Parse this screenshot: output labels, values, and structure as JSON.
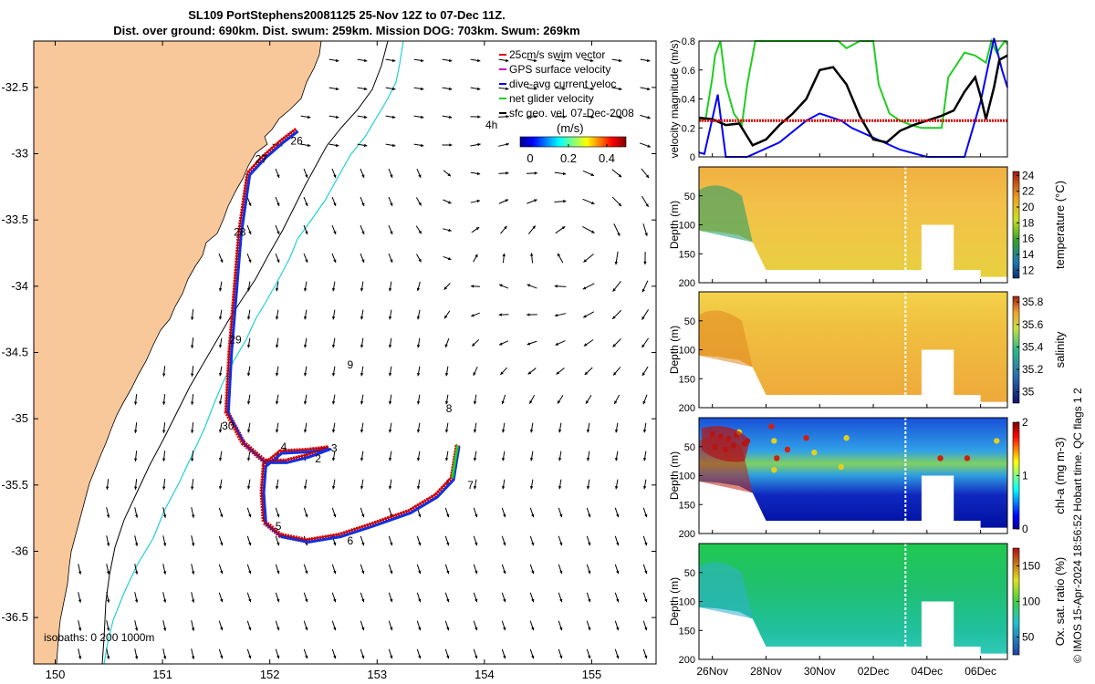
{
  "title_line1": "SL109 PortStephens20081125 25-Nov 12Z to 07-Dec 11Z.",
  "title_line2": "Dist. over ground: 690km. Dist. swum: 259km. Mission DOG: 703km. Swum: 269km",
  "credit": "© IMOS 15-Apr-2024 18:56:52 Hobart time. QC flags 1  2",
  "map": {
    "legend": [
      "25cm/s swim vector",
      "GPS surface velocity",
      "dive-avg current veloc",
      "net glider velocity",
      "sfc geo. vel. 07-Dec-2008"
    ],
    "legend_colors": [
      "#e00000",
      "#cc00cc",
      "#0000ff",
      "#22cc22",
      "#000000"
    ],
    "scale_label": "4h",
    "colorbar_unit": "(m/s)",
    "colorbar_ticks": [
      "0",
      "0.2",
      "0.4"
    ],
    "isobaths_label": "isobaths: 0    200  1000m",
    "lon_ticks": [
      "150",
      "151",
      "152",
      "153",
      "154",
      "155"
    ],
    "lat_ticks": [
      "-32.5",
      "-33",
      "-33.5",
      "-34",
      "-34.5",
      "-35",
      "-35.5",
      "-36",
      "-36.5"
    ],
    "day_labels": [
      {
        "t": "26",
        "lon": 152.25,
        "lat": -32.93
      },
      {
        "t": "27",
        "lon": 151.92,
        "lat": -33.07
      },
      {
        "t": "28",
        "lon": 151.72,
        "lat": -33.62
      },
      {
        "t": "29",
        "lon": 151.68,
        "lat": -34.43
      },
      {
        "t": "9",
        "lon": 152.75,
        "lat": -34.62
      },
      {
        "t": "30",
        "lon": 151.61,
        "lat": -35.08
      },
      {
        "t": "8",
        "lon": 153.67,
        "lat": -34.95
      },
      {
        "t": "4",
        "lon": 152.13,
        "lat": -35.24
      },
      {
        "t": "3",
        "lon": 152.6,
        "lat": -35.25
      },
      {
        "t": "2",
        "lon": 152.45,
        "lat": -35.33
      },
      {
        "t": "7",
        "lon": 153.87,
        "lat": -35.53
      },
      {
        "t": "5",
        "lon": 152.08,
        "lat": -35.84
      },
      {
        "t": "6",
        "lon": 152.75,
        "lat": -35.95
      }
    ]
  },
  "chart_data": [
    {
      "type": "line",
      "ylabel": "velocity magnitude (m/s)",
      "ylim": [
        0,
        0.8
      ],
      "yticks": [
        "0",
        "0.2",
        "0.4",
        "0.6",
        "0.8"
      ],
      "x_unit": "days since 25-Nov-2008 00Z",
      "series": [
        {
          "name": "net glider velocity",
          "color": "#22cc22",
          "x": [
            0.5,
            0.75,
            1.0,
            1.1,
            1.3,
            1.5,
            1.8,
            2.1,
            2.3,
            2.6,
            2.7,
            3.0,
            3.5,
            4.0,
            4.5,
            5.0,
            5.3,
            5.5,
            5.7,
            6.0,
            6.5,
            7.0,
            7.2,
            7.6,
            8.0,
            8.4,
            8.8,
            9.2,
            9.55,
            9.8,
            10.4,
            10.8,
            11.2,
            11.4,
            11.6,
            11.9,
            12.0
          ],
          "y": [
            0.25,
            0.26,
            0.55,
            0.7,
            0.8,
            0.5,
            0.3,
            0.22,
            0.5,
            0.8,
            0.8,
            0.8,
            0.8,
            0.8,
            0.8,
            0.8,
            0.8,
            0.8,
            0.8,
            0.75,
            0.8,
            0.8,
            0.5,
            0.3,
            0.25,
            0.22,
            0.2,
            0.2,
            0.2,
            0.55,
            0.72,
            0.7,
            0.65,
            0.8,
            0.72,
            0.8,
            0.78
          ]
        },
        {
          "name": "dive-avg current veloc",
          "color": "#0000ff",
          "x": [
            0.5,
            0.7,
            1.2,
            1.5,
            2.3,
            3.5,
            4.5,
            5.0,
            5.8,
            6.2,
            8.0,
            9.0,
            9.5,
            10.4,
            11.0,
            11.5,
            11.8,
            12.0
          ],
          "y": [
            0.03,
            0.02,
            0.43,
            0.0,
            0.0,
            0.1,
            0.25,
            0.3,
            0.25,
            0.2,
            0.05,
            0.0,
            0.0,
            0.0,
            0.38,
            0.82,
            0.6,
            0.48
          ]
        },
        {
          "name": "surface velocity",
          "color": "#000000",
          "x": [
            0.5,
            1.0,
            1.5,
            2.0,
            2.5,
            3.0,
            3.5,
            4.0,
            4.5,
            5.0,
            5.5,
            6.0,
            6.5,
            7.0,
            7.5,
            8.0,
            8.5,
            9.0,
            9.5,
            10.0,
            10.4,
            10.8,
            11.0,
            11.2,
            11.5,
            11.7,
            12.0
          ],
          "y": [
            0.27,
            0.26,
            0.22,
            0.23,
            0.08,
            0.12,
            0.22,
            0.3,
            0.4,
            0.6,
            0.62,
            0.5,
            0.28,
            0.12,
            0.1,
            0.18,
            0.22,
            0.25,
            0.28,
            0.32,
            0.45,
            0.55,
            0.42,
            0.26,
            0.48,
            0.67,
            0.7
          ]
        },
        {
          "name": "25cm/s swim vector",
          "color": "#e00000",
          "dashed": true,
          "x": [
            0.5,
            12.0
          ],
          "y": [
            0.25,
            0.25
          ]
        }
      ]
    },
    {
      "type": "heatmap",
      "label": "temperature (°C)",
      "ticks": [
        "12",
        "14",
        "16",
        "18",
        "20",
        "22",
        "24"
      ],
      "range": [
        11,
        24.5
      ]
    },
    {
      "type": "heatmap",
      "label": "salinity",
      "ticks": [
        "35",
        "35.2",
        "35.4",
        "35.6",
        "35.8"
      ],
      "range": [
        34.9,
        35.85
      ]
    },
    {
      "type": "heatmap",
      "label": "chl-a (mg m-3)",
      "ticks": [
        "0",
        "1",
        "2"
      ],
      "range": [
        0,
        2
      ]
    },
    {
      "type": "heatmap",
      "label": "Ox. sat. ratio (%)",
      "ticks": [
        "50",
        "100",
        "150"
      ],
      "range": [
        25,
        175
      ]
    }
  ],
  "depth_axis": {
    "label": "Depth (m)",
    "ticks": [
      "50",
      "100",
      "150",
      "200"
    ]
  },
  "time_axis": {
    "ticks": [
      "26Nov",
      "28Nov",
      "30Nov",
      "02Dec",
      "04Dec",
      "06Dec"
    ]
  }
}
